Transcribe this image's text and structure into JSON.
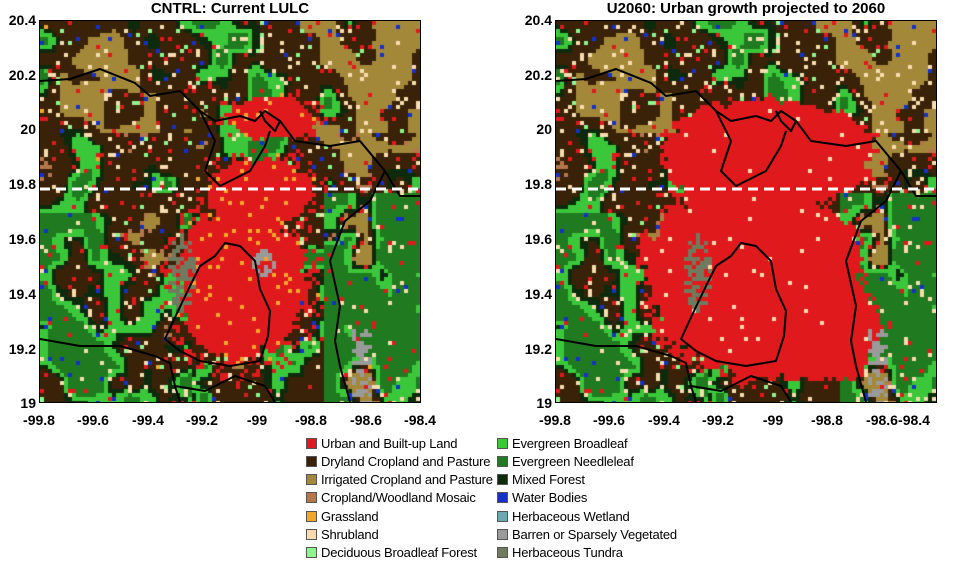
{
  "panels": [
    {
      "title": "CNTRL: Current LULC",
      "scenario": "current"
    },
    {
      "title": "U2060: Urban growth projected to 2060",
      "scenario": "u2060"
    }
  ],
  "axes": {
    "x_ticks": [
      "-99.8",
      "-99.6",
      "-99.4",
      "-99.2",
      "-99",
      "-98.8",
      "-98.6",
      "-98.4"
    ],
    "y_ticks": [
      "20.4",
      "20.2",
      "20",
      "19.8",
      "19.6",
      "19.4",
      "19.2",
      "19"
    ],
    "x_range": [
      -99.8,
      -98.4
    ],
    "y_range": [
      19.0,
      20.4
    ]
  },
  "reference_line": {
    "latitude": 19.78,
    "style": "dashed",
    "color": "#ffffff"
  },
  "legend": {
    "left_column": [
      {
        "label": "Urban and Built-up Land",
        "color": "#e0191c"
      },
      {
        "label": "Dryland Cropland and Pasture",
        "color": "#3a2208"
      },
      {
        "label": "Irrigated Cropland and Pasture",
        "color": "#a4883a"
      },
      {
        "label": "Cropland/Woodland Mosaic",
        "color": "#b5764c"
      },
      {
        "label": "Grassland",
        "color": "#f2a62b"
      },
      {
        "label": "Shrubland",
        "color": "#f6dcae"
      },
      {
        "label": "Deciduous Broadleaf Forest",
        "color": "#8df58d"
      }
    ],
    "right_column": [
      {
        "label": "Evergreen Broadleaf",
        "color": "#3ac83a"
      },
      {
        "label": "Evergreen Needleleaf",
        "color": "#1f7a20"
      },
      {
        "label": "Mixed Forest",
        "color": "#0e2a0c"
      },
      {
        "label": "Water Bodies",
        "color": "#1432c8"
      },
      {
        "label": "Herbaceous Wetland",
        "color": "#6aa9b2"
      },
      {
        "label": "Barren or Sparsely Vegetated",
        "color": "#9a9a9a"
      },
      {
        "label": "Herbaceous Tundra",
        "color": "#707a5e"
      }
    ]
  }
}
